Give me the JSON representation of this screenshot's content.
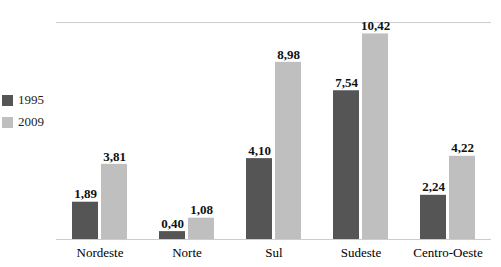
{
  "chart_data": {
    "type": "bar",
    "categories": [
      "Nordeste",
      "Norte",
      "Sul",
      "Sudeste",
      "Centro-Oeste"
    ],
    "series": [
      {
        "name": "1995",
        "color": "#555555",
        "values": [
          1.89,
          0.4,
          4.1,
          7.54,
          2.24
        ],
        "value_labels": [
          "1,89",
          "0,40",
          "4,10",
          "7,54",
          "2,24"
        ]
      },
      {
        "name": "2009",
        "color": "#bfbfbf",
        "values": [
          3.81,
          1.08,
          8.98,
          10.42,
          4.22
        ],
        "value_labels": [
          "3,81",
          "1,08",
          "8,98",
          "10,42",
          "4,22"
        ]
      }
    ],
    "ylim": [
      0,
      11
    ],
    "legend": "left",
    "data_labels": true,
    "tick_labels": "x"
  }
}
